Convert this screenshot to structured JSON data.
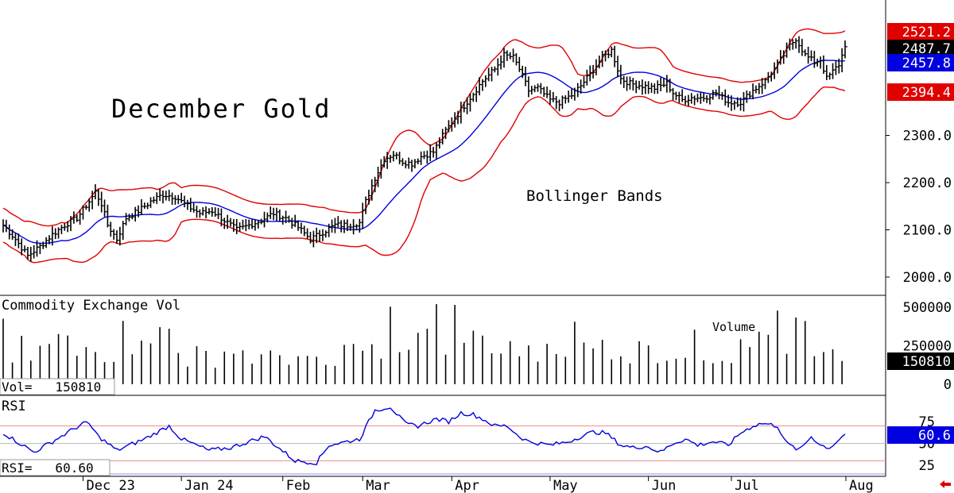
{
  "title": "December Gold",
  "overlay_label": "Bollinger Bands",
  "volume_panel": {
    "title": "Commodity Exchange Vol",
    "label": "Volume",
    "readout": "Vol=   150810"
  },
  "rsi_panel": {
    "title": "RSI",
    "readout": "RSI=   60.60"
  },
  "badges": {
    "upper": "2521.2",
    "last": "2487.7",
    "middle": "2457.8",
    "lower": "2394.4",
    "volume": "150810",
    "rsi": "60.6"
  },
  "colors": {
    "bands": "#e00000",
    "average": "#0000e0",
    "price": "#000000",
    "rsi": "#0000e0",
    "badge_red": "#e00000",
    "badge_black": "#000000",
    "badge_blue": "#0000e0"
  },
  "chart_data": [
    {
      "type": "ohlc",
      "title": "December Gold",
      "annotation": "Bollinger Bands",
      "y_ticks": [
        "2000.0",
        "2100.0",
        "2200.0",
        "2300.0"
      ],
      "ylim": [
        1975,
        2550
      ],
      "x_labels": [
        "Dec 23",
        "Jan 24",
        "Feb",
        "Mar",
        "Apr",
        "May",
        "Jun",
        "Jul",
        "Aug"
      ],
      "close_anchors": [
        [
          0,
          2110
        ],
        [
          4,
          2080
        ],
        [
          8,
          2045
        ],
        [
          12,
          2065
        ],
        [
          16,
          2090
        ],
        [
          20,
          2110
        ],
        [
          24,
          2125
        ],
        [
          28,
          2160
        ],
        [
          30,
          2180
        ],
        [
          32,
          2155
        ],
        [
          34,
          2110
        ],
        [
          37,
          2080
        ],
        [
          40,
          2125
        ],
        [
          44,
          2140
        ],
        [
          48,
          2160
        ],
        [
          52,
          2175
        ],
        [
          56,
          2170
        ],
        [
          60,
          2150
        ],
        [
          64,
          2135
        ],
        [
          68,
          2140
        ],
        [
          72,
          2120
        ],
        [
          76,
          2100
        ],
        [
          80,
          2110
        ],
        [
          84,
          2120
        ],
        [
          88,
          2135
        ],
        [
          92,
          2125
        ],
        [
          96,
          2105
        ],
        [
          100,
          2080
        ],
        [
          104,
          2095
        ],
        [
          108,
          2110
        ],
        [
          112,
          2110
        ],
        [
          116,
          2115
        ],
        [
          118,
          2160
        ],
        [
          121,
          2210
        ],
        [
          124,
          2250
        ],
        [
          127,
          2260
        ],
        [
          130,
          2245
        ],
        [
          133,
          2240
        ],
        [
          136,
          2255
        ],
        [
          140,
          2265
        ],
        [
          144,
          2310
        ],
        [
          148,
          2345
        ],
        [
          152,
          2380
        ],
        [
          156,
          2415
        ],
        [
          160,
          2440
        ],
        [
          163,
          2470
        ],
        [
          166,
          2465
        ],
        [
          168,
          2440
        ],
        [
          171,
          2395
        ],
        [
          174,
          2400
        ],
        [
          178,
          2375
        ],
        [
          181,
          2370
        ],
        [
          185,
          2385
        ],
        [
          188,
          2405
        ],
        [
          191,
          2430
        ],
        [
          195,
          2465
        ],
        [
          198,
          2480
        ],
        [
          201,
          2420
        ],
        [
          204,
          2410
        ],
        [
          208,
          2405
        ],
        [
          212,
          2400
        ],
        [
          216,
          2410
        ],
        [
          218,
          2390
        ],
        [
          221,
          2375
        ],
        [
          224,
          2380
        ],
        [
          228,
          2380
        ],
        [
          232,
          2390
        ],
        [
          236,
          2370
        ],
        [
          240,
          2370
        ],
        [
          244,
          2395
        ],
        [
          248,
          2415
        ],
        [
          252,
          2450
        ],
        [
          256,
          2490
        ],
        [
          258,
          2505
        ],
        [
          261,
          2470
        ],
        [
          264,
          2455
        ],
        [
          266,
          2460
        ],
        [
          268,
          2420
        ],
        [
          270,
          2435
        ],
        [
          272,
          2450
        ],
        [
          274,
          2487.7
        ]
      ],
      "bands": {
        "upper_last": 2521.2,
        "middle_last": 2457.8,
        "lower_last": 2394.4
      },
      "last": 2487.7
    },
    {
      "type": "bar",
      "title": "Commodity Exchange Vol",
      "annotation": "Volume",
      "y_ticks": [
        "0",
        "250000",
        "500000"
      ],
      "ylim": [
        0,
        540000
      ],
      "last": 150810,
      "level_anchors": [
        [
          0,
          250000
        ],
        [
          30,
          260000
        ],
        [
          60,
          200000
        ],
        [
          90,
          170000
        ],
        [
          115,
          230000
        ],
        [
          130,
          320000
        ],
        [
          150,
          300000
        ],
        [
          175,
          230000
        ],
        [
          200,
          250000
        ],
        [
          230,
          200000
        ],
        [
          250,
          290000
        ],
        [
          275,
          180000
        ]
      ]
    },
    {
      "type": "line",
      "title": "RSI",
      "y_ticks": [
        "25",
        "50",
        "75"
      ],
      "ylim": [
        15,
        95
      ],
      "reference_lines": [
        30,
        70
      ],
      "last": 60.6,
      "anchors": [
        [
          0,
          62
        ],
        [
          10,
          40
        ],
        [
          16,
          52
        ],
        [
          26,
          73
        ],
        [
          28,
          72
        ],
        [
          31,
          58
        ],
        [
          37,
          42
        ],
        [
          46,
          55
        ],
        [
          54,
          70
        ],
        [
          58,
          55
        ],
        [
          67,
          42
        ],
        [
          74,
          45
        ],
        [
          85,
          58
        ],
        [
          95,
          30
        ],
        [
          102,
          28
        ],
        [
          106,
          48
        ],
        [
          116,
          55
        ],
        [
          121,
          88
        ],
        [
          126,
          92
        ],
        [
          131,
          72
        ],
        [
          135,
          70
        ],
        [
          141,
          78
        ],
        [
          145,
          75
        ],
        [
          149,
          85
        ],
        [
          153,
          83
        ],
        [
          156,
          78
        ],
        [
          160,
          70
        ],
        [
          164,
          70
        ],
        [
          168,
          58
        ],
        [
          171,
          52
        ],
        [
          178,
          48
        ],
        [
          184,
          52
        ],
        [
          188,
          58
        ],
        [
          192,
          63
        ],
        [
          196,
          62
        ],
        [
          201,
          48
        ],
        [
          205,
          45
        ],
        [
          209,
          47
        ],
        [
          214,
          40
        ],
        [
          218,
          50
        ],
        [
          222,
          55
        ],
        [
          226,
          48
        ],
        [
          231,
          52
        ],
        [
          236,
          48
        ],
        [
          240,
          62
        ],
        [
          244,
          70
        ],
        [
          247,
          73
        ],
        [
          252,
          70
        ],
        [
          255,
          50
        ],
        [
          259,
          42
        ],
        [
          263,
          58
        ],
        [
          266,
          48
        ],
        [
          269,
          45
        ],
        [
          274,
          60.6
        ]
      ]
    }
  ]
}
